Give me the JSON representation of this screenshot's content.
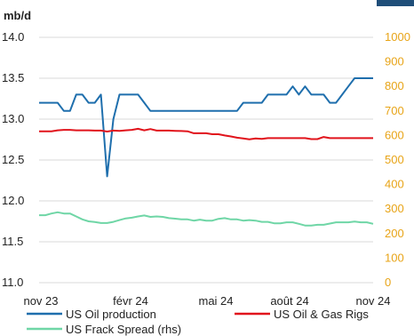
{
  "chart_data": {
    "type": "line",
    "y_unit_label": "mb/d",
    "x_tick_labels": [
      "nov 23",
      "févr 24",
      "mai 24",
      "août 24",
      "nov 24"
    ],
    "y_left": {
      "min": 11.0,
      "max": 14.0,
      "ticks": [
        "11.0",
        "11.5",
        "12.0",
        "12.5",
        "13.0",
        "13.5",
        "14.0"
      ]
    },
    "y_right": {
      "min": 0,
      "max": 1000,
      "ticks": [
        "0",
        "100",
        "200",
        "300",
        "400",
        "500",
        "600",
        "700",
        "800",
        "900",
        "1000"
      ]
    },
    "grid": "horizontal",
    "legend_position": "bottom",
    "colors": {
      "oil": "#1f6fad",
      "rigs": "#e1141c",
      "frack": "#6fd6a6",
      "right_axis": "#e8a417",
      "grid": "#d9d9d9",
      "corner_box": "#1f4e79"
    },
    "series": [
      {
        "name": "US Oil production",
        "axis": "left",
        "color": "#1f6fad",
        "values": [
          13.2,
          13.2,
          13.2,
          13.2,
          13.1,
          13.1,
          13.3,
          13.3,
          13.2,
          13.2,
          13.3,
          12.3,
          13.0,
          13.3,
          13.3,
          13.3,
          13.3,
          13.2,
          13.1,
          13.1,
          13.1,
          13.1,
          13.1,
          13.1,
          13.1,
          13.1,
          13.1,
          13.1,
          13.1,
          13.1,
          13.1,
          13.1,
          13.1,
          13.2,
          13.2,
          13.2,
          13.2,
          13.3,
          13.3,
          13.3,
          13.3,
          13.4,
          13.3,
          13.4,
          13.3,
          13.3,
          13.3,
          13.2,
          13.2,
          13.3,
          13.4,
          13.5,
          13.5,
          13.5,
          13.5
        ]
      },
      {
        "name": "US Oil & Gas Rigs",
        "axis": "right",
        "color": "#e1141c",
        "values": [
          617,
          617,
          617,
          621,
          623,
          623,
          621,
          621,
          621,
          620,
          620,
          616,
          620,
          619,
          621,
          623,
          627,
          621,
          626,
          620,
          620,
          620,
          619,
          618,
          617,
          609,
          609,
          609,
          605,
          605,
          600,
          596,
          591,
          588,
          584,
          588,
          586,
          589,
          589,
          589,
          589,
          589,
          589,
          589,
          585,
          585,
          594,
          589,
          589,
          589,
          589,
          589,
          589,
          589,
          589
        ]
      },
      {
        "name": "US Frack Spread (rhs)",
        "axis": "right",
        "color": "#6fd6a6",
        "values": [
          275,
          275,
          282,
          287,
          282,
          282,
          270,
          258,
          250,
          247,
          243,
          243,
          248,
          255,
          262,
          265,
          270,
          274,
          268,
          270,
          268,
          263,
          261,
          258,
          258,
          253,
          257,
          253,
          253,
          260,
          263,
          258,
          258,
          253,
          255,
          253,
          248,
          248,
          242,
          242,
          246,
          246,
          240,
          233,
          233,
          236,
          236,
          241,
          246,
          246,
          246,
          249,
          246,
          246,
          240
        ]
      }
    ]
  }
}
